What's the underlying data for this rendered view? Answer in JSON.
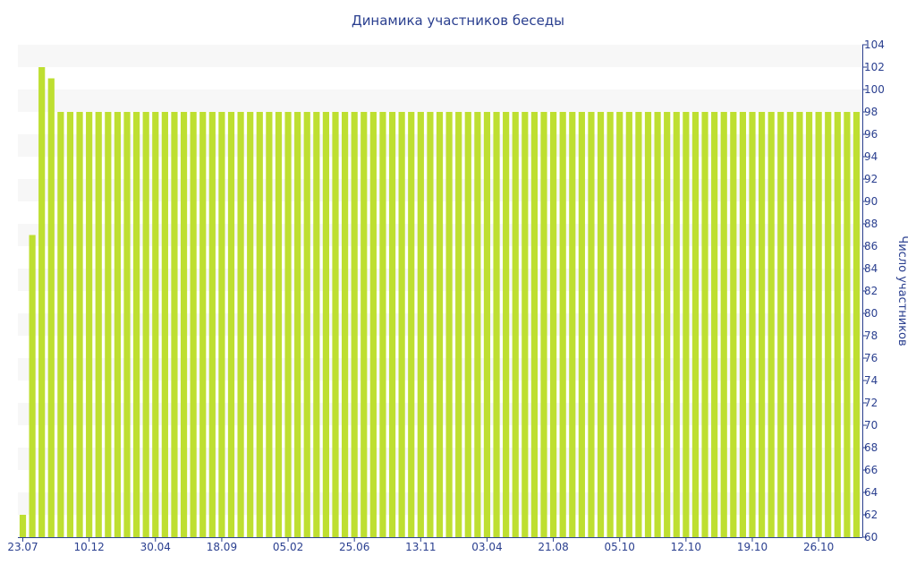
{
  "chart_data": {
    "type": "bar",
    "title": "Динамика участников беседы",
    "xlabel": "",
    "ylabel": "Число участников",
    "ylim": [
      60,
      104
    ],
    "y_ticks": [
      60,
      62,
      64,
      66,
      68,
      70,
      72,
      74,
      76,
      78,
      80,
      82,
      84,
      86,
      88,
      90,
      92,
      94,
      96,
      98,
      100,
      102,
      104
    ],
    "x_tick_labels": [
      "23.07",
      "10.12",
      "30.04",
      "18.09",
      "05.02",
      "25.06",
      "13.11",
      "03.04",
      "21.08",
      "05.10",
      "12.10",
      "19.10",
      "26.10"
    ],
    "x_tick_bar_index": [
      0,
      7,
      14,
      21,
      28,
      35,
      42,
      49,
      56,
      63,
      70,
      77,
      84
    ],
    "values": [
      62,
      87,
      102,
      101,
      98,
      98,
      98,
      98,
      98,
      98,
      98,
      98,
      98,
      98,
      98,
      98,
      98,
      98,
      98,
      98,
      98,
      98,
      98,
      98,
      98,
      98,
      98,
      98,
      98,
      98,
      98,
      98,
      98,
      98,
      98,
      98,
      98,
      98,
      98,
      98,
      98,
      98,
      98,
      98,
      98,
      98,
      98,
      98,
      98,
      98,
      98,
      98,
      98,
      98,
      98,
      98,
      98,
      98,
      98,
      98,
      98,
      98,
      98,
      98,
      98,
      98,
      98,
      98,
      98,
      98,
      98,
      98,
      98,
      98,
      98,
      98,
      98,
      98,
      98,
      98,
      98,
      98,
      98,
      98,
      98,
      98,
      98,
      98,
      98
    ],
    "bar_color": "#bedf31",
    "band_color": "#f7f7f7",
    "axis_text_color": "#2a3f8f",
    "y_axis_side": "right",
    "grid": "alternating horizontal bands"
  }
}
